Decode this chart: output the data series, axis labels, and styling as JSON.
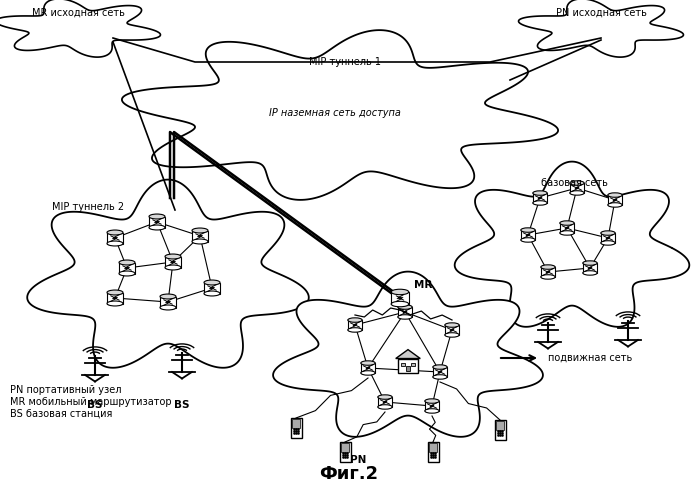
{
  "title": "Фиг.2",
  "bg_color": "#ffffff",
  "labels": {
    "mr_home": "MR исходная сеть",
    "pn_home": "PN исходная сеть",
    "mip_tunnel1": "MIP туннель 1",
    "mip_tunnel2": "MIP туннель 2",
    "ip_network": "IP наземная сеть доступа",
    "base_network": "базовая сеть",
    "mobile_network": "подвижная сеть",
    "mr_label": "MR",
    "pn_label": "PN",
    "bs1_label": "BS",
    "bs2_label": "BS",
    "legend1": "PN портативный узел",
    "legend2": "MR мобильный маршрутизатор",
    "legend3": "BS базовая станция"
  }
}
